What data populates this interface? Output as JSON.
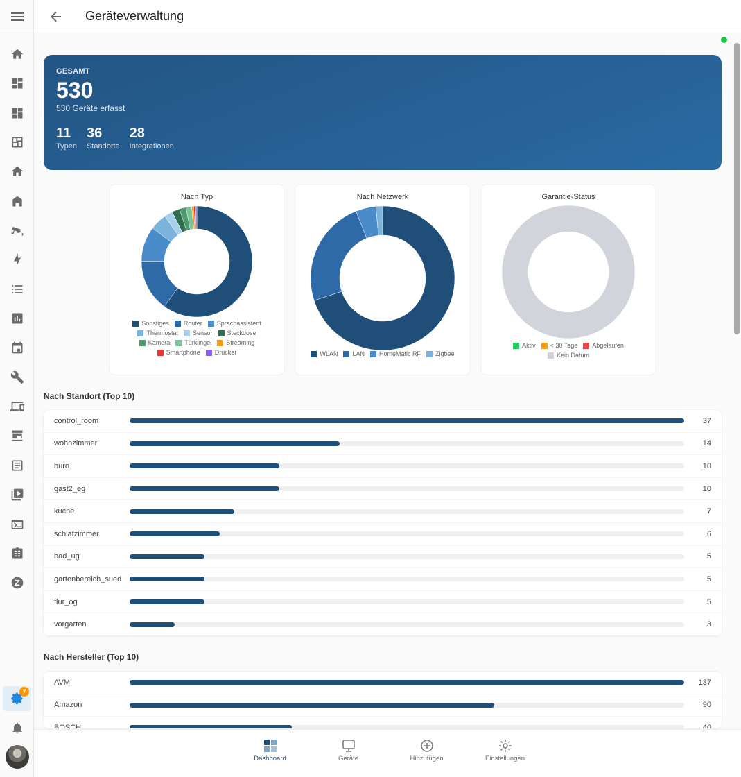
{
  "header": {
    "title": "Geräteverwaltung",
    "menu_icon": "menu-icon",
    "back_icon": "arrow-left-icon"
  },
  "status": {
    "connection_color": "#1ec94a"
  },
  "sidebar": {
    "items": [
      {
        "icon": "home-icon"
      },
      {
        "icon": "dashboard-icon"
      },
      {
        "icon": "dashboard-icon"
      },
      {
        "icon": "floorplan-icon"
      },
      {
        "icon": "home-icon"
      },
      {
        "icon": "home-outline-icon"
      },
      {
        "icon": "cctv-icon"
      },
      {
        "icon": "lightning-icon"
      },
      {
        "icon": "list-icon"
      },
      {
        "icon": "chart-box-icon"
      },
      {
        "icon": "calendar-icon"
      },
      {
        "icon": "wrench-icon"
      },
      {
        "icon": "devices-icon"
      },
      {
        "icon": "hacs-icon"
      },
      {
        "icon": "text-box-icon"
      },
      {
        "icon": "media-play-icon"
      },
      {
        "icon": "terminal-icon"
      },
      {
        "icon": "clipboard-list-icon"
      },
      {
        "icon": "zwave-icon"
      }
    ],
    "settings": {
      "icon": "cog-icon",
      "badge": "7"
    },
    "notifications": {
      "icon": "bell-icon"
    },
    "avatar": "user-avatar"
  },
  "hero": {
    "label": "GESAMT",
    "total": "530",
    "subtitle": "530 Geräte erfasst",
    "stats": [
      {
        "value": "11",
        "label": "Typen"
      },
      {
        "value": "36",
        "label": "Standorte"
      },
      {
        "value": "28",
        "label": "Integrationen"
      }
    ]
  },
  "chart_data": [
    {
      "type": "pie",
      "title": "Nach Typ",
      "donut": true,
      "legend_position": "bottom",
      "categories": [
        "Sonstiges",
        "Router",
        "Sprachassistent",
        "Thermostat",
        "Sensor",
        "Steckdose",
        "Kamera",
        "Türklingel",
        "Streaming",
        "Smartphone",
        "Drucker"
      ],
      "values": [
        318,
        80,
        54,
        26,
        13,
        12,
        10,
        9,
        3,
        3,
        2
      ],
      "colors": [
        "#1f4e79",
        "#2e6aa8",
        "#4a8cc9",
        "#7bb3dc",
        "#a9d0ea",
        "#2f6f4f",
        "#4c9a6a",
        "#7cc39a",
        "#f39c12",
        "#e53935",
        "#8e5cf0"
      ]
    },
    {
      "type": "pie",
      "title": "Nach Netzwerk",
      "donut": true,
      "legend_position": "bottom",
      "categories": [
        "WLAN",
        "LAN",
        "HomeMatic RF",
        "Zigbee"
      ],
      "values": [
        371,
        127,
        24,
        8
      ],
      "colors": [
        "#1f4e79",
        "#2e6aa8",
        "#4a8cc9",
        "#7bb3dc"
      ]
    },
    {
      "type": "pie",
      "title": "Garantie-Status",
      "donut": true,
      "legend_position": "bottom",
      "categories": [
        "Aktiv",
        "< 30 Tage",
        "Abgelaufen",
        "Kein Datum"
      ],
      "values": [
        0,
        0,
        0,
        530
      ],
      "colors": [
        "#22c55e",
        "#f59e0b",
        "#ef4444",
        "#d1d5db"
      ]
    }
  ],
  "locations": {
    "title": "Nach Standort (Top 10)",
    "max": 37,
    "rows": [
      {
        "name": "control_room",
        "count": 37
      },
      {
        "name": "wohnzimmer",
        "count": 14
      },
      {
        "name": "buro",
        "count": 10
      },
      {
        "name": "gast2_eg",
        "count": 10
      },
      {
        "name": "kuche",
        "count": 7
      },
      {
        "name": "schlafzimmer",
        "count": 6
      },
      {
        "name": "bad_ug",
        "count": 5
      },
      {
        "name": "gartenbereich_sued",
        "count": 5
      },
      {
        "name": "flur_og",
        "count": 5
      },
      {
        "name": "vorgarten",
        "count": 3
      }
    ]
  },
  "manufacturers": {
    "title": "Nach Hersteller (Top 10)",
    "max": 137,
    "rows": [
      {
        "name": "AVM",
        "count": 137
      },
      {
        "name": "Amazon",
        "count": 90
      },
      {
        "name": "BOSCH",
        "count": 40
      }
    ]
  },
  "bottom_nav": [
    {
      "label": "Dashboard",
      "icon": "dashboard-grid-icon",
      "active": true
    },
    {
      "label": "Geräte",
      "icon": "monitor-icon",
      "active": false
    },
    {
      "label": "Hinzufügen",
      "icon": "plus-circle-icon",
      "active": false
    },
    {
      "label": "Einstellungen",
      "icon": "sun-settings-icon",
      "active": false
    }
  ],
  "bar_color": "#1f4e79"
}
